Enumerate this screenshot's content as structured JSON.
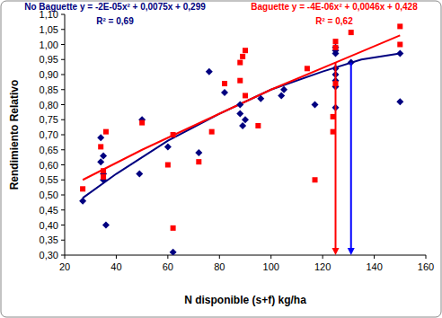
{
  "chart_data": {
    "type": "scatter",
    "xlabel": "N disponible (s+f) kg/ha",
    "ylabel": "Rendimiento Relativo",
    "xlim": [
      20,
      160
    ],
    "xticks": [
      20,
      40,
      60,
      80,
      100,
      120,
      140,
      160
    ],
    "ylim": [
      0.3,
      1.1
    ],
    "yticks": [
      {
        "value": 0.3,
        "label": "0,30"
      },
      {
        "value": 0.35,
        "label": "0,35"
      },
      {
        "value": 0.4,
        "label": "0,40"
      },
      {
        "value": 0.45,
        "label": "0,45"
      },
      {
        "value": 0.5,
        "label": "0,50"
      },
      {
        "value": 0.55,
        "label": "0,55"
      },
      {
        "value": 0.6,
        "label": "0,60"
      },
      {
        "value": 0.65,
        "label": "0,65"
      },
      {
        "value": 0.7,
        "label": "0,70"
      },
      {
        "value": 0.75,
        "label": "0,75"
      },
      {
        "value": 0.8,
        "label": "0,80"
      },
      {
        "value": 0.85,
        "label": "0,85"
      },
      {
        "value": 0.9,
        "label": "0,90"
      },
      {
        "value": 0.95,
        "label": "0,95"
      },
      {
        "value": 1.0,
        "label": "1,00"
      },
      {
        "value": 1.05,
        "label": "1,05"
      },
      {
        "value": 1.1,
        "label": "1,10"
      }
    ],
    "grid": false,
    "series": [
      {
        "name": "No Baguette",
        "type": "scatter",
        "color": "#000080",
        "marker": "diamond",
        "x": [
          27,
          34,
          34,
          35,
          35,
          35,
          36,
          49,
          50,
          60,
          62,
          72,
          76,
          82,
          88,
          88,
          89,
          90,
          96,
          104,
          105,
          117,
          125,
          125,
          125,
          125,
          125,
          125,
          125,
          125,
          131,
          150,
          150
        ],
        "values": [
          0.48,
          0.69,
          0.61,
          0.63,
          0.57,
          0.55,
          0.4,
          0.57,
          0.75,
          0.66,
          0.31,
          0.64,
          0.91,
          0.84,
          0.8,
          0.77,
          0.73,
          0.75,
          0.82,
          0.83,
          0.85,
          0.8,
          0.79,
          0.86,
          0.88,
          0.9,
          0.92,
          0.97,
          0.98,
          0.99,
          0.94,
          0.97,
          0.81
        ]
      },
      {
        "name": "Baguette",
        "type": "scatter",
        "color": "#ff0000",
        "marker": "square",
        "x": [
          27,
          34,
          35,
          35,
          36,
          50,
          60,
          62,
          62,
          72,
          77,
          82,
          88,
          88,
          89,
          90,
          90,
          95,
          114,
          117,
          124,
          124,
          125,
          125,
          125,
          131,
          150,
          150
        ],
        "values": [
          0.52,
          0.66,
          0.58,
          0.56,
          0.71,
          0.74,
          0.6,
          0.39,
          0.7,
          0.61,
          0.71,
          0.87,
          0.94,
          0.88,
          0.96,
          0.98,
          0.83,
          0.73,
          0.92,
          0.55,
          0.71,
          0.76,
          0.87,
          1.01,
          0.99,
          1.04,
          1.06,
          1.0
        ]
      },
      {
        "type": "line",
        "color": "#000080",
        "line_style": "solid",
        "x": [
          27,
          40,
          60,
          80,
          100,
          120,
          135,
          150
        ],
        "values": [
          0.49,
          0.57,
          0.68,
          0.77,
          0.85,
          0.91,
          0.95,
          0.97
        ]
      },
      {
        "type": "line",
        "color": "#ff0000",
        "line_style": "solid",
        "x": [
          27,
          50,
          75,
          100,
          125,
          150
        ],
        "values": [
          0.55,
          0.65,
          0.75,
          0.85,
          0.94,
          1.03
        ]
      }
    ],
    "annotations": [
      {
        "text": "y = -2E-05x² + 0,0075x + 0,299",
        "color": "#000080"
      },
      {
        "text": "R² = 0,69",
        "color": "#000080"
      },
      {
        "text": "y = -4E-06x² + 0,0046x + 0,428",
        "color": "#ff0000"
      },
      {
        "text": "R² = 0,62",
        "color": "#ff0000"
      }
    ],
    "arrows": [
      {
        "x": 125,
        "y": 0.94,
        "color": "#ff0000"
      },
      {
        "x": 131,
        "y": 0.94,
        "color": "#0000ff"
      }
    ]
  }
}
